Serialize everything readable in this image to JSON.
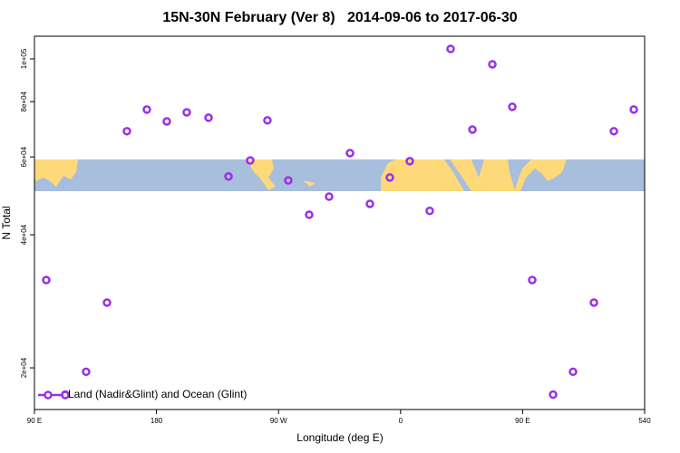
{
  "chart_data": {
    "type": "scatter",
    "title": "15N-30N February (Ver 8)   2014-09-06 to 2017-06-30",
    "x_label": "Longitude (deg E)",
    "y_label": "N Total",
    "xlim": [
      90,
      540
    ],
    "xticks": [
      {
        "value": 90,
        "label": "90 E"
      },
      180,
      {
        "value": 270,
        "label": "90 W"
      },
      {
        "value": 360,
        "label": "0"
      },
      {
        "value": 450,
        "label": "90 E"
      },
      540
    ],
    "ylim": [
      16100,
      112500
    ],
    "ylog": true,
    "yticks": [
      {
        "value": 20000,
        "label": "2e+04"
      },
      {
        "value": 40000,
        "label": "4e+04"
      },
      {
        "value": 60000,
        "label": "6e+04"
      },
      {
        "value": 80000,
        "label": "8e+04"
      },
      {
        "value": 100000,
        "label": "1e+05"
      }
    ],
    "legend": "bottom left",
    "series": [
      {
        "name": "Land (Nadir&Glint) and Ocean (Glint)",
        "color": "#9b30e6",
        "x": [
          98.7,
          112.7,
          128.1,
          143.5,
          158.2,
          172.9,
          187.6,
          202.3,
          218.4,
          233.1,
          249.1,
          261.8,
          277.2,
          292.6,
          307.3,
          322.7,
          337.4,
          352.1,
          366.8,
          381.5,
          396.9,
          413.0,
          427.7,
          442.4,
          457.1,
          472.5,
          487.2,
          502.6,
          517.3,
          532.0
        ],
        "values": [
          31600,
          17400,
          19600,
          28100,
          68600,
          76800,
          72200,
          75700,
          73600,
          54200,
          58900,
          72600,
          53100,
          44400,
          48800,
          61200,
          47000,
          53900,
          58700,
          45300,
          105300,
          69200,
          97200,
          77900,
          31600,
          17400,
          19600,
          28100,
          68600,
          76800
        ]
      }
    ]
  }
}
